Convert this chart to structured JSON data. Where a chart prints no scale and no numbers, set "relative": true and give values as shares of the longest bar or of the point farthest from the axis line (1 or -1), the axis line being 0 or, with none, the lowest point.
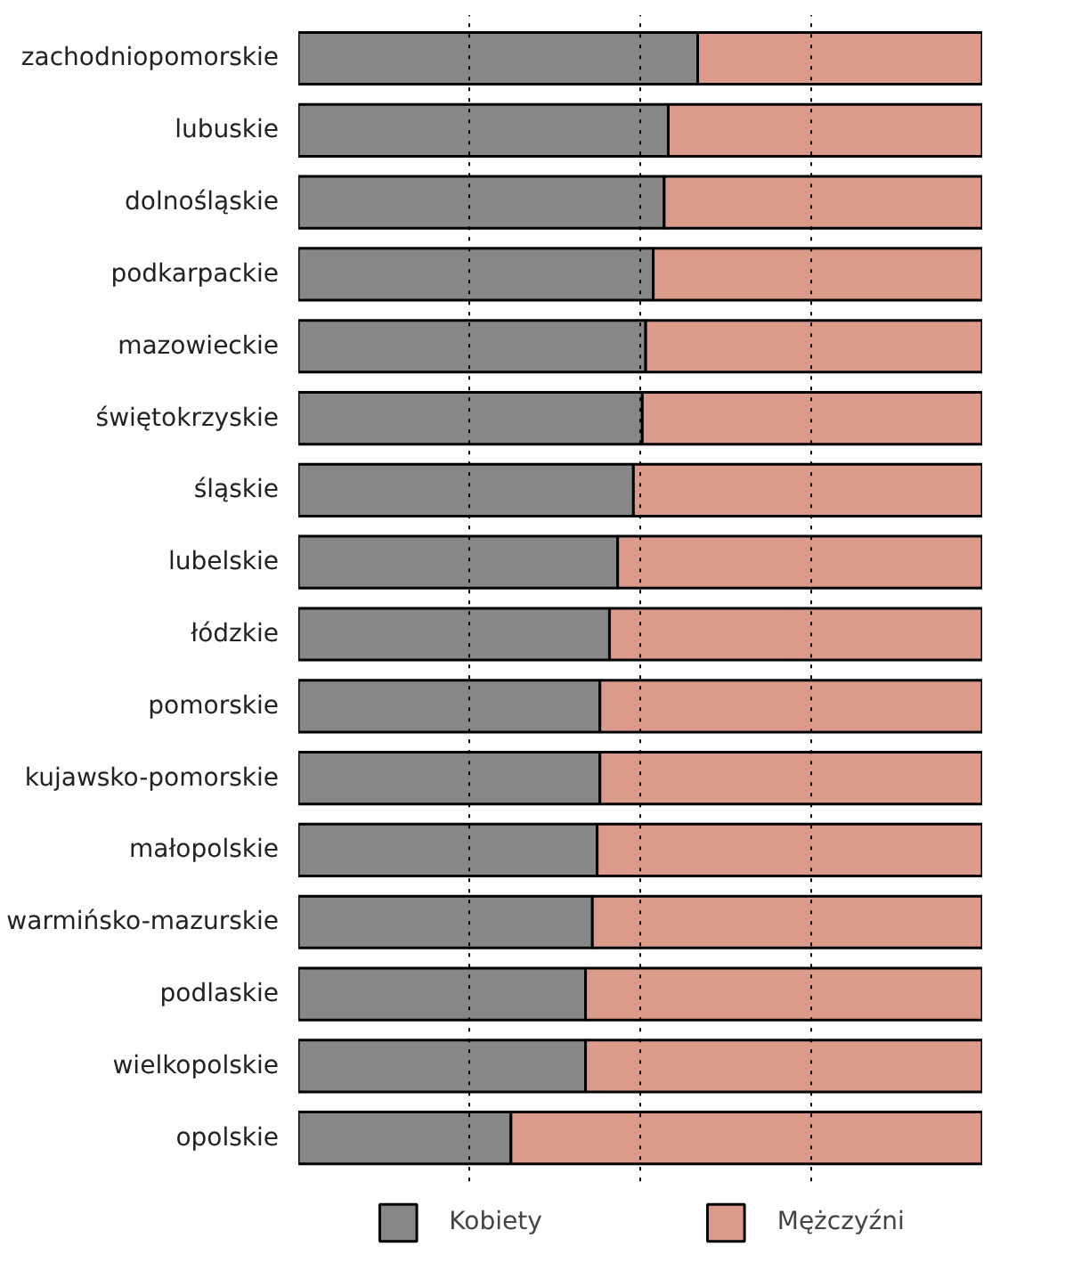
{
  "chart_data": {
    "type": "bar",
    "orientation": "horizontal",
    "stacked": true,
    "relative": true,
    "categories": [
      "zachodniopomorskie",
      "lubuskie",
      "dolnośląskie",
      "podkarpackie",
      "mazowieckie",
      "świętokrzyskie",
      "śląskie",
      "lubelskie",
      "łódzkie",
      "pomorskie",
      "kujawsko-pomorskie",
      "małopolskie",
      "warmińsko-mazurskie",
      "podlaskie",
      "wielkopolskie",
      "opolskie"
    ],
    "series": [
      {
        "name": "Kobiety",
        "color": "#878787",
        "values": [
          0.584,
          0.541,
          0.535,
          0.519,
          0.508,
          0.503,
          0.49,
          0.467,
          0.455,
          0.441,
          0.441,
          0.437,
          0.43,
          0.42,
          0.42,
          0.311
        ]
      },
      {
        "name": "Mężczyźni",
        "color": "#dc9a8a",
        "values": [
          0.416,
          0.459,
          0.465,
          0.481,
          0.492,
          0.497,
          0.51,
          0.533,
          0.545,
          0.559,
          0.559,
          0.563,
          0.57,
          0.58,
          0.58,
          0.689
        ]
      }
    ],
    "ref_lines": [
      {
        "axis": "x",
        "value": 0.25,
        "line_style": "dotted",
        "color": "#000000"
      },
      {
        "axis": "x",
        "value": 0.5,
        "line_style": "dotted",
        "color": "#000000"
      },
      {
        "axis": "x",
        "value": 0.75,
        "line_style": "dotted",
        "color": "#000000"
      }
    ],
    "grid": false,
    "legend": "bottom"
  }
}
